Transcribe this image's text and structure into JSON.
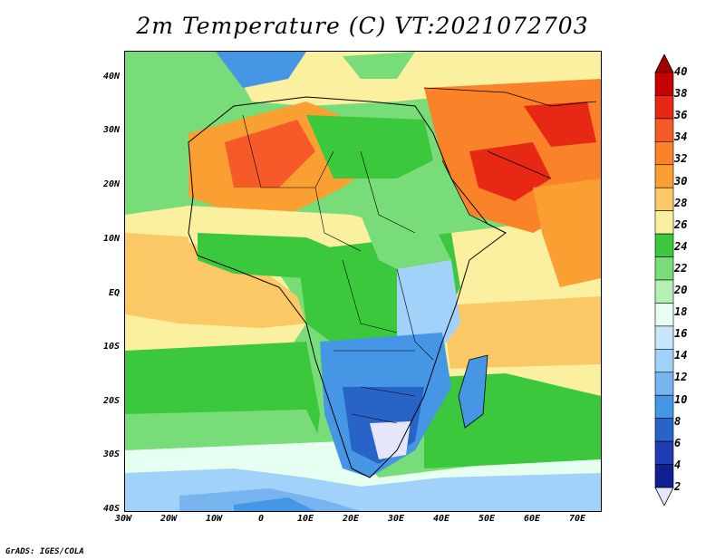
{
  "title": "2m Temperature (C) VT:2021072703",
  "footer": "GrADS: IGES/COLA",
  "map": {
    "lat_labels": [
      "40N",
      "30N",
      "20N",
      "10N",
      "EQ",
      "10S",
      "20S",
      "30S",
      "40S"
    ],
    "lon_labels": [
      "30W",
      "20W",
      "10W",
      "0",
      "10E",
      "20E",
      "30E",
      "40E",
      "50E",
      "60E",
      "70E"
    ],
    "extent": {
      "lon": [
        -30,
        75
      ],
      "lat": [
        -40,
        45
      ]
    }
  },
  "colorbar": {
    "labels": [
      "40",
      "38",
      "36",
      "34",
      "32",
      "30",
      "28",
      "26",
      "24",
      "22",
      "20",
      "18",
      "16",
      "14",
      "12",
      "10",
      "8",
      "6",
      "4",
      "2"
    ],
    "colors": [
      "#a00000",
      "#c80000",
      "#e62814",
      "#f55a28",
      "#fa8228",
      "#faa032",
      "#fac864",
      "#faf0a0",
      "#3cc83c",
      "#78dc78",
      "#b4f0b4",
      "#e6fff0",
      "#c8e6fa",
      "#a0d2fa",
      "#78b4f0",
      "#4696e6",
      "#2864c8",
      "#1e3cb4",
      "#102090",
      "#e6e6fa"
    ]
  }
}
